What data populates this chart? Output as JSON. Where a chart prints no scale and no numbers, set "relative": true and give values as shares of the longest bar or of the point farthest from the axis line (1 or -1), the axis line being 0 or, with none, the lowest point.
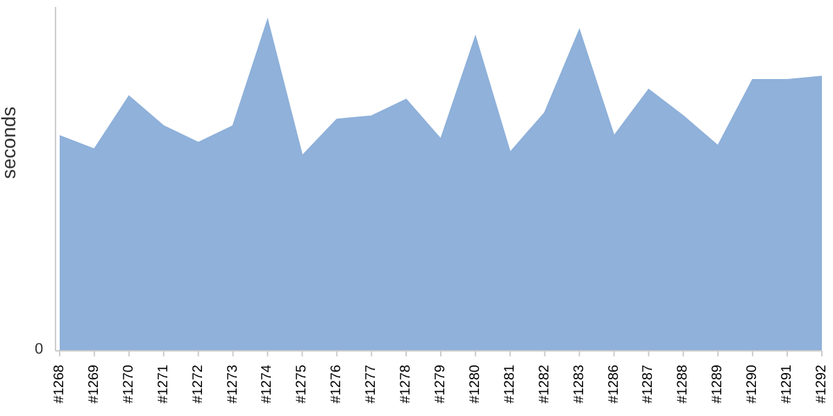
{
  "chart_data": {
    "type": "area",
    "ylabel": "seconds",
    "relative": true,
    "color": "#8fb1da",
    "categories": [
      "#1268",
      "#1269",
      "#1270",
      "#1271",
      "#1272",
      "#1273",
      "#1274",
      "#1275",
      "#1276",
      "#1277",
      "#1278",
      "#1279",
      "#1280",
      "#1281",
      "#1282",
      "#1283",
      "#1286",
      "#1287",
      "#1288",
      "#1289",
      "#1290",
      "#1291",
      "#1292"
    ],
    "values": [
      0.65,
      0.61,
      0.77,
      0.68,
      0.63,
      0.68,
      1,
      0.59,
      0.7,
      0.71,
      0.76,
      0.64,
      0.95,
      0.6,
      0.72,
      0.97,
      0.65,
      0.79,
      0.71,
      0.62,
      0.82,
      0.82,
      0.83
    ],
    "annotations": [
      "0"
    ]
  }
}
